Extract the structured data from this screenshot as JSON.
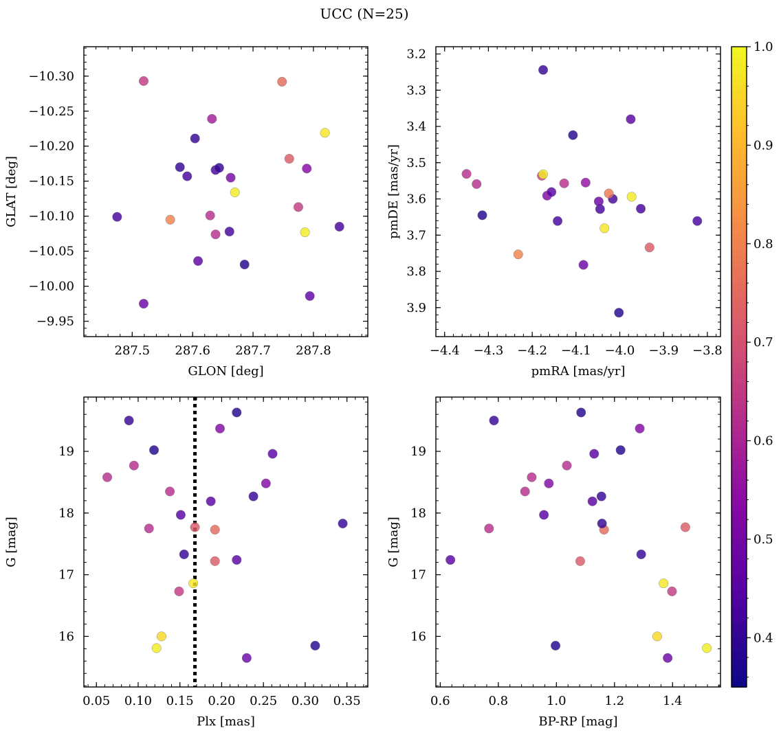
{
  "title": "UCC (N=25)",
  "colorbar": {
    "min": 0.35,
    "max": 1.0,
    "ticks": [
      0.4,
      0.5,
      0.6,
      0.7,
      0.8,
      0.9,
      1.0
    ],
    "tick_labels": [
      "0.4",
      "0.5",
      "0.6",
      "0.7",
      "0.8",
      "0.9",
      "1.0"
    ],
    "colormap": "plasma"
  },
  "chart_data": [
    {
      "type": "scatter",
      "xlabel": "GLON [deg]",
      "ylabel": "GLAT [deg]",
      "xlim": [
        287.42,
        287.89
      ],
      "ylim": [
        -10.342,
        -9.928
      ],
      "xticks": [
        287.5,
        287.6,
        287.7,
        287.8
      ],
      "xtick_labels": [
        "287.5",
        "287.6",
        "287.7",
        "287.8"
      ],
      "yticks": [
        -9.95,
        -10.0,
        -10.05,
        -10.1,
        -10.15,
        -10.2,
        -10.25,
        -10.3
      ],
      "ytick_labels": [
        "−9.95",
        "−10.00",
        "−10.05",
        "−10.10",
        "−10.15",
        "−10.20",
        "−10.25",
        "−10.30"
      ],
      "points": [
        {
          "x": 287.519,
          "y": -9.975,
          "c": 0.48
        },
        {
          "x": 287.794,
          "y": -9.986,
          "c": 0.46
        },
        {
          "x": 287.609,
          "y": -10.036,
          "c": 0.46
        },
        {
          "x": 287.686,
          "y": -10.031,
          "c": 0.38
        },
        {
          "x": 287.638,
          "y": -10.074,
          "c": 0.62
        },
        {
          "x": 287.661,
          "y": -10.078,
          "c": 0.42
        },
        {
          "x": 287.786,
          "y": -10.077,
          "c": 0.98
        },
        {
          "x": 287.843,
          "y": -10.085,
          "c": 0.42
        },
        {
          "x": 287.475,
          "y": -10.099,
          "c": 0.42
        },
        {
          "x": 287.563,
          "y": -10.095,
          "c": 0.8
        },
        {
          "x": 287.629,
          "y": -10.101,
          "c": 0.62
        },
        {
          "x": 287.775,
          "y": -10.113,
          "c": 0.65
        },
        {
          "x": 287.67,
          "y": -10.134,
          "c": 0.98
        },
        {
          "x": 287.591,
          "y": -10.157,
          "c": 0.42
        },
        {
          "x": 287.663,
          "y": -10.155,
          "c": 0.5
        },
        {
          "x": 287.579,
          "y": -10.17,
          "c": 0.4
        },
        {
          "x": 287.638,
          "y": -10.166,
          "c": 0.42
        },
        {
          "x": 287.644,
          "y": -10.169,
          "c": 0.4
        },
        {
          "x": 287.789,
          "y": -10.168,
          "c": 0.53
        },
        {
          "x": 287.76,
          "y": -10.182,
          "c": 0.72
        },
        {
          "x": 287.604,
          "y": -10.211,
          "c": 0.4
        },
        {
          "x": 287.819,
          "y": -10.219,
          "c": 0.97
        },
        {
          "x": 287.632,
          "y": -10.239,
          "c": 0.58
        },
        {
          "x": 287.519,
          "y": -10.293,
          "c": 0.65
        },
        {
          "x": 287.748,
          "y": -10.292,
          "c": 0.75
        }
      ]
    },
    {
      "type": "scatter",
      "xlabel": "pmRA [mas/yr]",
      "ylabel": "pmDE [mas/yr]",
      "xlim": [
        -4.42,
        -3.77
      ],
      "ylim": [
        3.18,
        3.98
      ],
      "xticks": [
        -4.4,
        -4.3,
        -4.2,
        -4.1,
        -4.0,
        -3.9,
        -3.8
      ],
      "xtick_labels": [
        "−4.4",
        "−4.3",
        "−4.2",
        "−4.1",
        "−4.0",
        "−3.9",
        "−3.8"
      ],
      "yticks": [
        3.2,
        3.3,
        3.4,
        3.5,
        3.6,
        3.7,
        3.8,
        3.9
      ],
      "ytick_labels": [
        "3.2",
        "3.3",
        "3.4",
        "3.5",
        "3.6",
        "3.7",
        "3.8",
        "3.9"
      ],
      "points": [
        {
          "x": -4.002,
          "y": 3.914,
          "c": 0.38
        },
        {
          "x": -4.083,
          "y": 3.782,
          "c": 0.48
        },
        {
          "x": -4.232,
          "y": 3.753,
          "c": 0.8
        },
        {
          "x": -3.932,
          "y": 3.734,
          "c": 0.72
        },
        {
          "x": -4.035,
          "y": 3.681,
          "c": 0.97
        },
        {
          "x": -4.142,
          "y": 3.661,
          "c": 0.42
        },
        {
          "x": -3.823,
          "y": 3.661,
          "c": 0.42
        },
        {
          "x": -4.314,
          "y": 3.645,
          "c": 0.38
        },
        {
          "x": -4.045,
          "y": 3.628,
          "c": 0.42
        },
        {
          "x": -3.952,
          "y": 3.627,
          "c": 0.42
        },
        {
          "x": -4.048,
          "y": 3.607,
          "c": 0.48
        },
        {
          "x": -4.016,
          "y": 3.6,
          "c": 0.42
        },
        {
          "x": -3.973,
          "y": 3.594,
          "c": 0.98
        },
        {
          "x": -4.166,
          "y": 3.591,
          "c": 0.52
        },
        {
          "x": -4.025,
          "y": 3.585,
          "c": 0.78
        },
        {
          "x": -4.156,
          "y": 3.581,
          "c": 0.45
        },
        {
          "x": -4.327,
          "y": 3.559,
          "c": 0.62
        },
        {
          "x": -4.127,
          "y": 3.557,
          "c": 0.62
        },
        {
          "x": -4.078,
          "y": 3.555,
          "c": 0.55
        },
        {
          "x": -4.178,
          "y": 3.536,
          "c": 0.65
        },
        {
          "x": -4.35,
          "y": 3.531,
          "c": 0.62
        },
        {
          "x": -4.175,
          "y": 3.532,
          "c": 0.98
        },
        {
          "x": -4.107,
          "y": 3.424,
          "c": 0.38
        },
        {
          "x": -3.975,
          "y": 3.38,
          "c": 0.45
        },
        {
          "x": -4.175,
          "y": 3.244,
          "c": 0.4
        }
      ]
    },
    {
      "type": "scatter",
      "xlabel": "Plx [mas]",
      "ylabel": "G [mag]",
      "xlim": [
        0.035,
        0.375
      ],
      "ylim": [
        19.88,
        15.18
      ],
      "xticks": [
        0.05,
        0.1,
        0.15,
        0.2,
        0.25,
        0.3,
        0.35
      ],
      "xtick_labels": [
        "0.05",
        "0.10",
        "0.15",
        "0.20",
        "0.25",
        "0.30",
        "0.35"
      ],
      "yticks": [
        16,
        17,
        18,
        19
      ],
      "ytick_labels": [
        "16",
        "17",
        "18",
        "19"
      ],
      "vline": {
        "x": 0.168,
        "style": "dotted",
        "color": "#000000"
      },
      "points": [
        {
          "x": 0.23,
          "y": 15.65,
          "c": 0.48
        },
        {
          "x": 0.122,
          "y": 15.81,
          "c": 0.98
        },
        {
          "x": 0.312,
          "y": 15.85,
          "c": 0.38
        },
        {
          "x": 0.128,
          "y": 16.0,
          "c": 0.95
        },
        {
          "x": 0.149,
          "y": 16.73,
          "c": 0.65
        },
        {
          "x": 0.166,
          "y": 16.86,
          "c": 0.97
        },
        {
          "x": 0.192,
          "y": 17.22,
          "c": 0.72
        },
        {
          "x": 0.218,
          "y": 17.24,
          "c": 0.45
        },
        {
          "x": 0.155,
          "y": 17.33,
          "c": 0.4
        },
        {
          "x": 0.113,
          "y": 17.75,
          "c": 0.62
        },
        {
          "x": 0.192,
          "y": 17.73,
          "c": 0.75
        },
        {
          "x": 0.168,
          "y": 17.77,
          "c": 0.72
        },
        {
          "x": 0.345,
          "y": 17.83,
          "c": 0.4
        },
        {
          "x": 0.151,
          "y": 17.97,
          "c": 0.45
        },
        {
          "x": 0.187,
          "y": 18.19,
          "c": 0.45
        },
        {
          "x": 0.238,
          "y": 18.27,
          "c": 0.4
        },
        {
          "x": 0.138,
          "y": 18.35,
          "c": 0.62
        },
        {
          "x": 0.253,
          "y": 18.48,
          "c": 0.52
        },
        {
          "x": 0.063,
          "y": 18.58,
          "c": 0.62
        },
        {
          "x": 0.095,
          "y": 18.77,
          "c": 0.62
        },
        {
          "x": 0.261,
          "y": 18.96,
          "c": 0.45
        },
        {
          "x": 0.119,
          "y": 19.02,
          "c": 0.38
        },
        {
          "x": 0.198,
          "y": 19.37,
          "c": 0.52
        },
        {
          "x": 0.089,
          "y": 19.5,
          "c": 0.4
        },
        {
          "x": 0.218,
          "y": 19.63,
          "c": 0.38
        }
      ]
    },
    {
      "type": "scatter",
      "xlabel": "BP-RP [mag]",
      "ylabel": "G [mag]",
      "xlim": [
        0.585,
        1.565
      ],
      "ylim": [
        19.88,
        15.18
      ],
      "xticks": [
        0.6,
        0.8,
        1.0,
        1.2,
        1.4
      ],
      "xtick_labels": [
        "0.6",
        "0.8",
        "1.0",
        "1.2",
        "1.4"
      ],
      "yticks": [
        16,
        17,
        18,
        19
      ],
      "ytick_labels": [
        "16",
        "17",
        "18",
        "19"
      ],
      "points": [
        {
          "x": 1.383,
          "y": 15.65,
          "c": 0.48
        },
        {
          "x": 1.518,
          "y": 15.81,
          "c": 0.98
        },
        {
          "x": 0.997,
          "y": 15.85,
          "c": 0.38
        },
        {
          "x": 1.347,
          "y": 16.0,
          "c": 0.95
        },
        {
          "x": 1.398,
          "y": 16.73,
          "c": 0.65
        },
        {
          "x": 1.369,
          "y": 16.86,
          "c": 0.97
        },
        {
          "x": 1.082,
          "y": 17.22,
          "c": 0.72
        },
        {
          "x": 0.635,
          "y": 17.24,
          "c": 0.45
        },
        {
          "x": 1.292,
          "y": 17.33,
          "c": 0.4
        },
        {
          "x": 0.768,
          "y": 17.75,
          "c": 0.62
        },
        {
          "x": 1.164,
          "y": 17.73,
          "c": 0.75
        },
        {
          "x": 1.444,
          "y": 17.77,
          "c": 0.72
        },
        {
          "x": 1.157,
          "y": 17.83,
          "c": 0.4
        },
        {
          "x": 0.957,
          "y": 17.97,
          "c": 0.45
        },
        {
          "x": 1.124,
          "y": 18.19,
          "c": 0.45
        },
        {
          "x": 1.155,
          "y": 18.27,
          "c": 0.4
        },
        {
          "x": 0.892,
          "y": 18.35,
          "c": 0.62
        },
        {
          "x": 0.974,
          "y": 18.48,
          "c": 0.52
        },
        {
          "x": 0.915,
          "y": 18.58,
          "c": 0.62
        },
        {
          "x": 1.036,
          "y": 18.77,
          "c": 0.62
        },
        {
          "x": 1.13,
          "y": 18.96,
          "c": 0.45
        },
        {
          "x": 1.221,
          "y": 19.02,
          "c": 0.38
        },
        {
          "x": 1.287,
          "y": 19.37,
          "c": 0.52
        },
        {
          "x": 0.785,
          "y": 19.5,
          "c": 0.4
        },
        {
          "x": 1.085,
          "y": 19.63,
          "c": 0.38
        }
      ]
    }
  ]
}
